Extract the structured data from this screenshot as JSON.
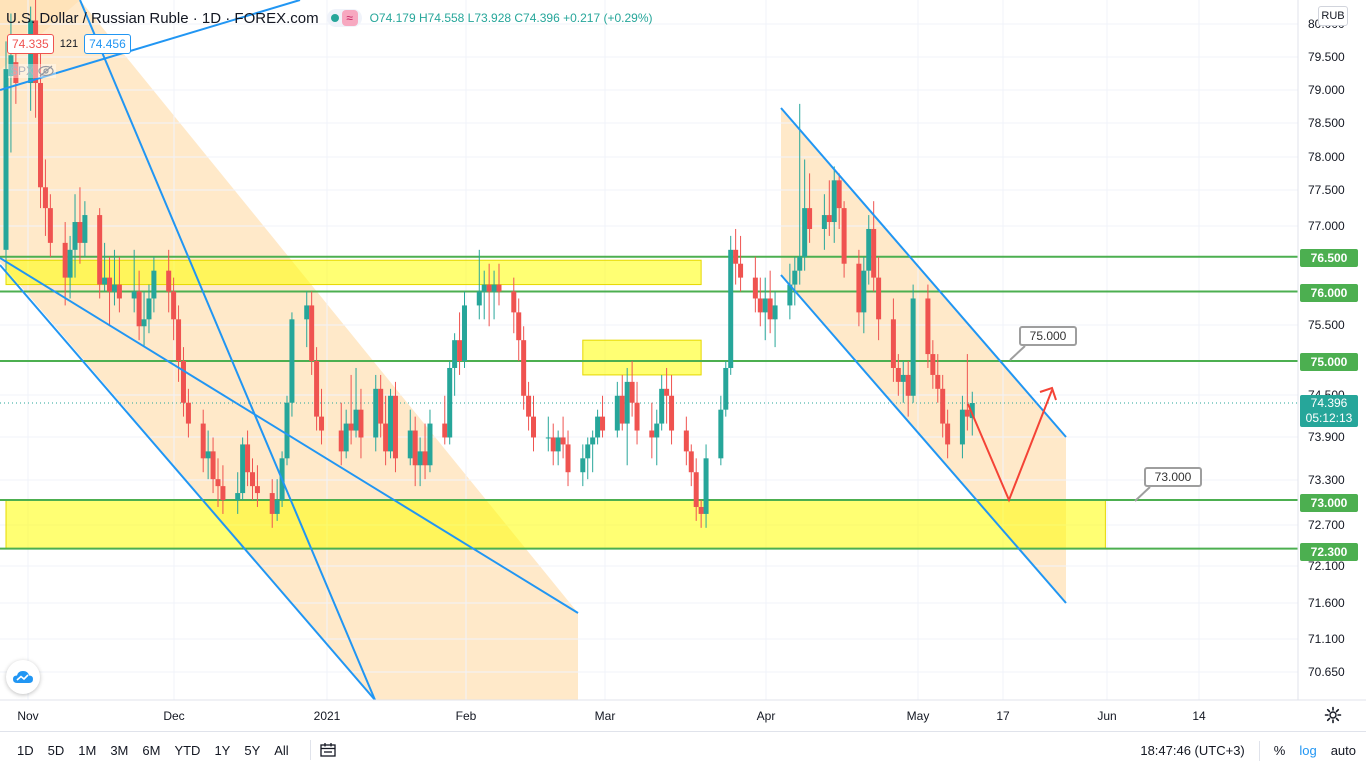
{
  "header": {
    "symbol_title": "U.S. Dollar / Russian Ruble · 1D · FOREX.com",
    "approx_symbol": "≈",
    "ohlc_text": "O74.179 H74.558 L73.928 C74.396 +0.217 (+0.29%)",
    "bid": "74.335",
    "spread": "121",
    "ask": "74.456",
    "overlay_symbol": "SPX",
    "currency_button": "RUB"
  },
  "price_axis": {
    "ticks": [
      "80.000",
      "79.500",
      "79.000",
      "78.500",
      "78.000",
      "77.500",
      "77.000",
      "75.500",
      "74.500",
      "73.900",
      "73.300",
      "72.700",
      "72.100",
      "71.600",
      "71.100",
      "70.650"
    ],
    "level_tags": [
      {
        "label": "76.500",
        "value": 76.5
      },
      {
        "label": "76.000",
        "value": 76.0
      },
      {
        "label": "75.000",
        "value": 75.0
      },
      {
        "label": "73.000",
        "value": 73.0
      },
      {
        "label": "72.300",
        "value": 72.3
      }
    ],
    "last_price": "74.396",
    "countdown": "05:12:13"
  },
  "time_axis": {
    "labels": [
      "Nov",
      "Dec",
      "2021",
      "Feb",
      "Mar",
      "Apr",
      "May",
      "17",
      "Jun",
      "14"
    ]
  },
  "annotations": {
    "callout_75": "75.000",
    "callout_73": "73.000"
  },
  "bottom_toolbar": {
    "timeframes": [
      "1D",
      "5D",
      "1M",
      "3M",
      "6M",
      "YTD",
      "1Y",
      "5Y",
      "All"
    ],
    "clock": "18:47:46 (UTC+3)",
    "percent": "%",
    "log": "log",
    "auto": "auto"
  },
  "colors": {
    "up": "#26a69a",
    "down": "#ef5350",
    "level_line": "#4caf50",
    "zone_fill": "#ffff00",
    "channel_line": "#2196f3",
    "channel_fill": "#ffe0b2",
    "projection": "#f44336"
  },
  "chart_data": {
    "type": "candlestick",
    "title": "U.S. Dollar / Russian Ruble · 1D · FOREX.com",
    "ylim": [
      70.5,
      80.2
    ],
    "x_range": [
      "2020-10-28",
      "2021-06-28"
    ],
    "horizontal_levels": [
      76.5,
      76.0,
      75.0,
      73.0,
      72.3
    ],
    "zones": [
      {
        "from": "2020-10-28",
        "to": "2021-03-18",
        "low": 76.1,
        "high": 76.45
      },
      {
        "from": "2021-02-22",
        "to": "2021-03-18",
        "low": 74.8,
        "high": 75.3
      },
      {
        "from": "2020-10-28",
        "to": "2021-06-08",
        "low": 72.3,
        "high": 73.0
      }
    ],
    "last": {
      "open": 74.179,
      "high": 74.558,
      "low": 73.928,
      "close": 74.396
    },
    "candles": [
      {
        "d": "2020-10-28",
        "o": 76.6,
        "h": 79.6,
        "l": 76.3,
        "c": 79.2
      },
      {
        "d": "2020-10-29",
        "o": 79.1,
        "h": 80.0,
        "l": 78.0,
        "c": 79.4
      },
      {
        "d": "2020-10-30",
        "o": 79.3,
        "h": 79.7,
        "l": 78.7,
        "c": 79.0
      },
      {
        "d": "2020-11-02",
        "o": 79.0,
        "h": 80.1,
        "l": 78.6,
        "c": 79.9
      },
      {
        "d": "2020-11-03",
        "o": 79.9,
        "h": 80.2,
        "l": 78.5,
        "c": 79.0
      },
      {
        "d": "2020-11-04",
        "o": 79.0,
        "h": 79.5,
        "l": 77.2,
        "c": 77.5
      },
      {
        "d": "2020-11-05",
        "o": 77.5,
        "h": 77.9,
        "l": 76.8,
        "c": 77.2
      },
      {
        "d": "2020-11-06",
        "o": 77.2,
        "h": 77.4,
        "l": 76.5,
        "c": 76.7
      },
      {
        "d": "2020-11-09",
        "o": 76.7,
        "h": 77.0,
        "l": 75.8,
        "c": 76.2
      },
      {
        "d": "2020-11-10",
        "o": 76.2,
        "h": 76.8,
        "l": 75.9,
        "c": 76.6
      },
      {
        "d": "2020-11-11",
        "o": 76.6,
        "h": 77.4,
        "l": 76.2,
        "c": 77.0
      },
      {
        "d": "2020-11-12",
        "o": 77.0,
        "h": 77.5,
        "l": 76.4,
        "c": 76.7
      },
      {
        "d": "2020-11-13",
        "o": 76.7,
        "h": 77.3,
        "l": 76.5,
        "c": 77.1
      },
      {
        "d": "2020-11-16",
        "o": 77.1,
        "h": 77.2,
        "l": 75.9,
        "c": 76.1
      },
      {
        "d": "2020-11-17",
        "o": 76.1,
        "h": 76.7,
        "l": 76.0,
        "c": 76.2
      },
      {
        "d": "2020-11-18",
        "o": 76.2,
        "h": 76.5,
        "l": 75.5,
        "c": 76.0
      },
      {
        "d": "2020-11-19",
        "o": 76.0,
        "h": 76.6,
        "l": 75.8,
        "c": 76.1
      },
      {
        "d": "2020-11-20",
        "o": 76.1,
        "h": 76.5,
        "l": 75.7,
        "c": 75.9
      },
      {
        "d": "2020-11-23",
        "o": 75.9,
        "h": 76.6,
        "l": 75.7,
        "c": 76.0
      },
      {
        "d": "2020-11-24",
        "o": 76.0,
        "h": 76.3,
        "l": 75.3,
        "c": 75.5
      },
      {
        "d": "2020-11-25",
        "o": 75.5,
        "h": 76.0,
        "l": 75.2,
        "c": 75.6
      },
      {
        "d": "2020-11-26",
        "o": 75.6,
        "h": 76.1,
        "l": 75.4,
        "c": 75.9
      },
      {
        "d": "2020-11-27",
        "o": 75.9,
        "h": 76.5,
        "l": 75.7,
        "c": 76.3
      },
      {
        "d": "2020-11-30",
        "o": 76.3,
        "h": 76.6,
        "l": 75.7,
        "c": 76.0
      },
      {
        "d": "2020-12-01",
        "o": 76.0,
        "h": 76.2,
        "l": 75.3,
        "c": 75.6
      },
      {
        "d": "2020-12-02",
        "o": 75.6,
        "h": 75.8,
        "l": 74.7,
        "c": 75.0
      },
      {
        "d": "2020-12-03",
        "o": 75.0,
        "h": 75.2,
        "l": 74.2,
        "c": 74.4
      },
      {
        "d": "2020-12-04",
        "o": 74.4,
        "h": 74.6,
        "l": 73.9,
        "c": 74.1
      },
      {
        "d": "2020-12-07",
        "o": 74.1,
        "h": 74.3,
        "l": 73.4,
        "c": 73.6
      },
      {
        "d": "2020-12-08",
        "o": 73.6,
        "h": 74.0,
        "l": 73.3,
        "c": 73.7
      },
      {
        "d": "2020-12-09",
        "o": 73.7,
        "h": 73.9,
        "l": 73.1,
        "c": 73.3
      },
      {
        "d": "2020-12-10",
        "o": 73.3,
        "h": 73.6,
        "l": 72.9,
        "c": 73.2
      },
      {
        "d": "2020-12-11",
        "o": 73.2,
        "h": 73.5,
        "l": 72.8,
        "c": 73.0
      },
      {
        "d": "2020-12-14",
        "o": 73.0,
        "h": 73.4,
        "l": 72.8,
        "c": 73.1
      },
      {
        "d": "2020-12-15",
        "o": 73.1,
        "h": 73.9,
        "l": 73.0,
        "c": 73.8
      },
      {
        "d": "2020-12-16",
        "o": 73.8,
        "h": 74.0,
        "l": 73.2,
        "c": 73.4
      },
      {
        "d": "2020-12-17",
        "o": 73.4,
        "h": 73.6,
        "l": 73.0,
        "c": 73.2
      },
      {
        "d": "2020-12-18",
        "o": 73.2,
        "h": 73.5,
        "l": 72.9,
        "c": 73.1
      },
      {
        "d": "2020-12-21",
        "o": 73.1,
        "h": 73.3,
        "l": 72.6,
        "c": 72.8
      },
      {
        "d": "2020-12-22",
        "o": 72.8,
        "h": 73.3,
        "l": 72.7,
        "c": 73.0
      },
      {
        "d": "2020-12-23",
        "o": 73.0,
        "h": 73.7,
        "l": 72.9,
        "c": 73.6
      },
      {
        "d": "2020-12-24",
        "o": 73.6,
        "h": 74.5,
        "l": 73.5,
        "c": 74.4
      },
      {
        "d": "2020-12-25",
        "o": 74.4,
        "h": 75.7,
        "l": 74.2,
        "c": 75.6
      },
      {
        "d": "2020-12-28",
        "o": 75.6,
        "h": 76.0,
        "l": 75.2,
        "c": 75.8
      },
      {
        "d": "2020-12-29",
        "o": 75.8,
        "h": 76.0,
        "l": 74.8,
        "c": 75.0
      },
      {
        "d": "2020-12-30",
        "o": 75.0,
        "h": 75.2,
        "l": 74.0,
        "c": 74.2
      },
      {
        "d": "2020-12-31",
        "o": 74.2,
        "h": 74.6,
        "l": 73.8,
        "c": 74.0
      },
      {
        "d": "2021-01-04",
        "o": 74.0,
        "h": 74.4,
        "l": 73.5,
        "c": 73.7
      },
      {
        "d": "2021-01-05",
        "o": 73.7,
        "h": 74.3,
        "l": 73.6,
        "c": 74.1
      },
      {
        "d": "2021-01-06",
        "o": 74.1,
        "h": 74.8,
        "l": 73.8,
        "c": 74.0
      },
      {
        "d": "2021-01-07",
        "o": 74.0,
        "h": 74.9,
        "l": 73.9,
        "c": 74.3
      },
      {
        "d": "2021-01-08",
        "o": 74.3,
        "h": 74.6,
        "l": 73.6,
        "c": 73.9
      },
      {
        "d": "2021-01-11",
        "o": 73.9,
        "h": 74.8,
        "l": 73.7,
        "c": 74.6
      },
      {
        "d": "2021-01-12",
        "o": 74.6,
        "h": 74.8,
        "l": 73.9,
        "c": 74.1
      },
      {
        "d": "2021-01-13",
        "o": 74.1,
        "h": 74.5,
        "l": 73.5,
        "c": 73.7
      },
      {
        "d": "2021-01-14",
        "o": 73.7,
        "h": 74.6,
        "l": 73.6,
        "c": 74.5
      },
      {
        "d": "2021-01-15",
        "o": 74.5,
        "h": 74.7,
        "l": 73.4,
        "c": 73.6
      },
      {
        "d": "2021-01-18",
        "o": 73.6,
        "h": 74.3,
        "l": 73.5,
        "c": 74.0
      },
      {
        "d": "2021-01-19",
        "o": 74.0,
        "h": 74.2,
        "l": 73.2,
        "c": 73.5
      },
      {
        "d": "2021-01-20",
        "o": 73.5,
        "h": 73.9,
        "l": 73.2,
        "c": 73.7
      },
      {
        "d": "2021-01-21",
        "o": 73.7,
        "h": 74.1,
        "l": 73.3,
        "c": 73.5
      },
      {
        "d": "2021-01-22",
        "o": 73.5,
        "h": 74.3,
        "l": 73.4,
        "c": 74.1
      },
      {
        "d": "2021-01-25",
        "o": 74.1,
        "h": 74.5,
        "l": 73.8,
        "c": 73.9
      },
      {
        "d": "2021-01-26",
        "o": 73.9,
        "h": 75.0,
        "l": 73.8,
        "c": 74.9
      },
      {
        "d": "2021-01-27",
        "o": 74.9,
        "h": 75.4,
        "l": 74.5,
        "c": 75.3
      },
      {
        "d": "2021-01-28",
        "o": 75.3,
        "h": 75.7,
        "l": 74.8,
        "c": 75.0
      },
      {
        "d": "2021-01-29",
        "o": 75.0,
        "h": 76.0,
        "l": 74.9,
        "c": 75.8
      },
      {
        "d": "2021-02-01",
        "o": 75.8,
        "h": 76.6,
        "l": 75.6,
        "c": 76.0
      },
      {
        "d": "2021-02-02",
        "o": 76.0,
        "h": 76.3,
        "l": 75.6,
        "c": 76.1
      },
      {
        "d": "2021-02-03",
        "o": 76.1,
        "h": 76.4,
        "l": 75.5,
        "c": 76.0
      },
      {
        "d": "2021-02-04",
        "o": 76.0,
        "h": 76.3,
        "l": 75.6,
        "c": 76.1
      },
      {
        "d": "2021-02-05",
        "o": 76.1,
        "h": 76.4,
        "l": 75.8,
        "c": 76.0
      },
      {
        "d": "2021-02-08",
        "o": 76.0,
        "h": 76.2,
        "l": 75.4,
        "c": 75.7
      },
      {
        "d": "2021-02-09",
        "o": 75.7,
        "h": 75.9,
        "l": 75.0,
        "c": 75.3
      },
      {
        "d": "2021-02-10",
        "o": 75.3,
        "h": 75.5,
        "l": 74.3,
        "c": 74.5
      },
      {
        "d": "2021-02-11",
        "o": 74.5,
        "h": 74.7,
        "l": 74.0,
        "c": 74.2
      },
      {
        "d": "2021-02-12",
        "o": 74.2,
        "h": 74.5,
        "l": 73.7,
        "c": 73.9
      },
      {
        "d": "2021-02-15",
        "o": 73.9,
        "h": 74.2,
        "l": 73.7,
        "c": 73.9
      },
      {
        "d": "2021-02-16",
        "o": 73.9,
        "h": 74.1,
        "l": 73.5,
        "c": 73.7
      },
      {
        "d": "2021-02-17",
        "o": 73.7,
        "h": 74.0,
        "l": 73.5,
        "c": 73.9
      },
      {
        "d": "2021-02-18",
        "o": 73.9,
        "h": 74.2,
        "l": 73.6,
        "c": 73.8
      },
      {
        "d": "2021-02-19",
        "o": 73.8,
        "h": 74.0,
        "l": 73.2,
        "c": 73.4
      },
      {
        "d": "2021-02-22",
        "o": 73.4,
        "h": 73.8,
        "l": 73.2,
        "c": 73.6
      },
      {
        "d": "2021-02-23",
        "o": 73.6,
        "h": 73.9,
        "l": 73.3,
        "c": 73.8
      },
      {
        "d": "2021-02-24",
        "o": 73.8,
        "h": 74.0,
        "l": 73.4,
        "c": 73.9
      },
      {
        "d": "2021-02-25",
        "o": 73.9,
        "h": 74.3,
        "l": 73.8,
        "c": 74.2
      },
      {
        "d": "2021-02-26",
        "o": 74.2,
        "h": 74.5,
        "l": 73.9,
        "c": 74.0
      },
      {
        "d": "2021-03-01",
        "o": 74.0,
        "h": 74.7,
        "l": 73.9,
        "c": 74.5
      },
      {
        "d": "2021-03-02",
        "o": 74.5,
        "h": 74.8,
        "l": 74.0,
        "c": 74.1
      },
      {
        "d": "2021-03-03",
        "o": 74.1,
        "h": 74.9,
        "l": 73.5,
        "c": 74.7
      },
      {
        "d": "2021-03-04",
        "o": 74.7,
        "h": 75.0,
        "l": 74.2,
        "c": 74.4
      },
      {
        "d": "2021-03-05",
        "o": 74.4,
        "h": 74.7,
        "l": 73.8,
        "c": 74.0
      },
      {
        "d": "2021-03-08",
        "o": 74.0,
        "h": 74.4,
        "l": 73.6,
        "c": 73.9
      },
      {
        "d": "2021-03-09",
        "o": 73.9,
        "h": 74.3,
        "l": 73.5,
        "c": 74.1
      },
      {
        "d": "2021-03-10",
        "o": 74.1,
        "h": 74.8,
        "l": 74.0,
        "c": 74.6
      },
      {
        "d": "2021-03-11",
        "o": 74.6,
        "h": 74.9,
        "l": 74.1,
        "c": 74.5
      },
      {
        "d": "2021-03-12",
        "o": 74.5,
        "h": 74.8,
        "l": 73.8,
        "c": 74.0
      },
      {
        "d": "2021-03-15",
        "o": 74.0,
        "h": 74.2,
        "l": 73.5,
        "c": 73.7
      },
      {
        "d": "2021-03-16",
        "o": 73.7,
        "h": 73.8,
        "l": 73.2,
        "c": 73.4
      },
      {
        "d": "2021-03-17",
        "o": 73.4,
        "h": 73.6,
        "l": 72.7,
        "c": 72.9
      },
      {
        "d": "2021-03-18",
        "o": 72.9,
        "h": 73.0,
        "l": 72.6,
        "c": 72.8
      },
      {
        "d": "2021-03-19",
        "o": 72.8,
        "h": 73.8,
        "l": 72.6,
        "c": 73.6
      },
      {
        "d": "2021-03-22",
        "o": 73.6,
        "h": 74.5,
        "l": 73.5,
        "c": 74.3
      },
      {
        "d": "2021-03-23",
        "o": 74.3,
        "h": 75.0,
        "l": 74.2,
        "c": 74.9
      },
      {
        "d": "2021-03-24",
        "o": 74.9,
        "h": 76.8,
        "l": 74.8,
        "c": 76.6
      },
      {
        "d": "2021-03-25",
        "o": 76.6,
        "h": 76.9,
        "l": 76.1,
        "c": 76.4
      },
      {
        "d": "2021-03-26",
        "o": 76.4,
        "h": 76.8,
        "l": 76.0,
        "c": 76.2
      },
      {
        "d": "2021-03-29",
        "o": 76.2,
        "h": 76.5,
        "l": 75.7,
        "c": 75.9
      },
      {
        "d": "2021-03-30",
        "o": 75.9,
        "h": 76.2,
        "l": 75.5,
        "c": 75.7
      },
      {
        "d": "2021-03-31",
        "o": 75.7,
        "h": 76.2,
        "l": 75.3,
        "c": 75.9
      },
      {
        "d": "2021-04-01",
        "o": 75.9,
        "h": 76.3,
        "l": 75.4,
        "c": 75.6
      },
      {
        "d": "2021-04-02",
        "o": 75.6,
        "h": 76.0,
        "l": 75.2,
        "c": 75.8
      },
      {
        "d": "2021-04-05",
        "o": 75.8,
        "h": 76.4,
        "l": 75.6,
        "c": 76.1
      },
      {
        "d": "2021-04-06",
        "o": 76.1,
        "h": 76.5,
        "l": 75.8,
        "c": 76.3
      },
      {
        "d": "2021-04-07",
        "o": 76.3,
        "h": 78.7,
        "l": 76.1,
        "c": 76.5
      },
      {
        "d": "2021-04-08",
        "o": 76.5,
        "h": 77.9,
        "l": 76.3,
        "c": 77.2
      },
      {
        "d": "2021-04-09",
        "o": 77.2,
        "h": 77.7,
        "l": 76.7,
        "c": 76.9
      },
      {
        "d": "2021-04-12",
        "o": 76.9,
        "h": 77.4,
        "l": 76.6,
        "c": 77.1
      },
      {
        "d": "2021-04-13",
        "o": 77.1,
        "h": 77.6,
        "l": 76.8,
        "c": 77.0
      },
      {
        "d": "2021-04-14",
        "o": 77.0,
        "h": 77.8,
        "l": 76.7,
        "c": 77.6
      },
      {
        "d": "2021-04-15",
        "o": 77.6,
        "h": 77.7,
        "l": 76.9,
        "c": 77.2
      },
      {
        "d": "2021-04-16",
        "o": 77.2,
        "h": 77.3,
        "l": 76.2,
        "c": 76.4
      },
      {
        "d": "2021-04-19",
        "o": 76.4,
        "h": 76.6,
        "l": 75.5,
        "c": 75.7
      },
      {
        "d": "2021-04-20",
        "o": 75.7,
        "h": 76.5,
        "l": 75.4,
        "c": 76.3
      },
      {
        "d": "2021-04-21",
        "o": 76.3,
        "h": 77.1,
        "l": 76.1,
        "c": 76.9
      },
      {
        "d": "2021-04-22",
        "o": 76.9,
        "h": 77.3,
        "l": 76.0,
        "c": 76.2
      },
      {
        "d": "2021-04-23",
        "o": 76.2,
        "h": 76.5,
        "l": 75.3,
        "c": 75.6
      },
      {
        "d": "2021-04-26",
        "o": 75.6,
        "h": 75.9,
        "l": 74.7,
        "c": 74.9
      },
      {
        "d": "2021-04-27",
        "o": 74.9,
        "h": 75.1,
        "l": 74.5,
        "c": 74.7
      },
      {
        "d": "2021-04-28",
        "o": 74.7,
        "h": 75.0,
        "l": 74.4,
        "c": 74.8
      },
      {
        "d": "2021-04-29",
        "o": 74.8,
        "h": 75.0,
        "l": 74.2,
        "c": 74.5
      },
      {
        "d": "2021-04-30",
        "o": 74.5,
        "h": 76.1,
        "l": 74.4,
        "c": 75.9
      },
      {
        "d": "2021-05-03",
        "o": 75.9,
        "h": 76.1,
        "l": 74.9,
        "c": 75.1
      },
      {
        "d": "2021-05-04",
        "o": 75.1,
        "h": 75.3,
        "l": 74.6,
        "c": 74.8
      },
      {
        "d": "2021-05-05",
        "o": 74.8,
        "h": 75.1,
        "l": 74.4,
        "c": 74.6
      },
      {
        "d": "2021-05-06",
        "o": 74.6,
        "h": 74.8,
        "l": 73.9,
        "c": 74.1
      },
      {
        "d": "2021-05-07",
        "o": 74.1,
        "h": 74.3,
        "l": 73.6,
        "c": 73.8
      },
      {
        "d": "2021-05-10",
        "o": 73.8,
        "h": 74.5,
        "l": 73.6,
        "c": 74.3
      },
      {
        "d": "2021-05-11",
        "o": 74.3,
        "h": 75.1,
        "l": 74.0,
        "c": 74.2
      },
      {
        "d": "2021-05-12",
        "o": 74.179,
        "h": 74.558,
        "l": 73.928,
        "c": 74.396
      }
    ]
  }
}
